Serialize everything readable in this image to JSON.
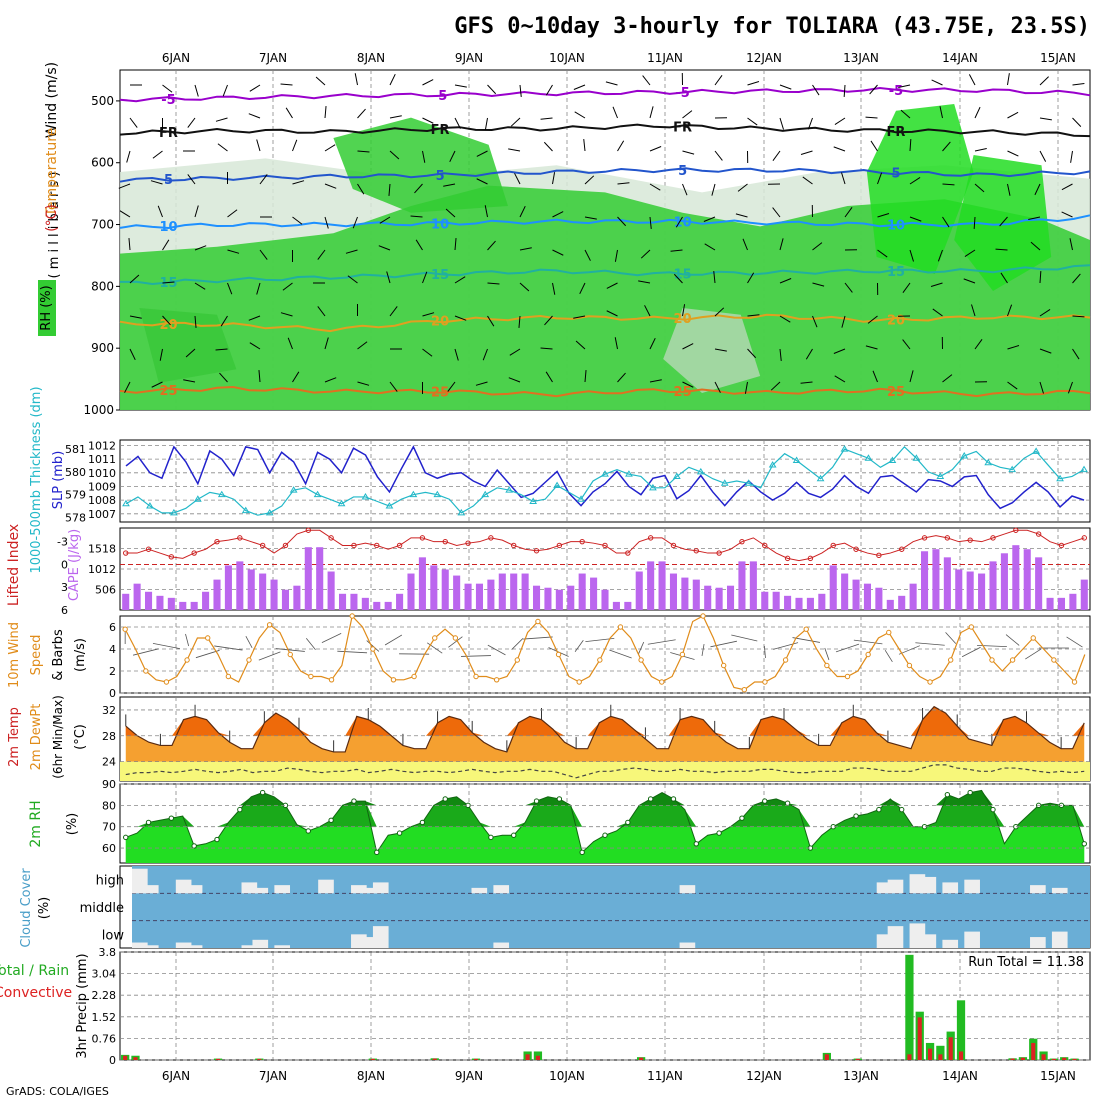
{
  "title": "GFS 0~10day 3-hourly for TOLIARA (43.75E, 23.5S)",
  "footer": "GrADS: COLA/IGES",
  "colors": {
    "grid": "#888888",
    "rh_green": "#33cc33",
    "rh_light": "#d7e8d7",
    "purple": "#9900cc",
    "blue": "#2222cc",
    "cyan": "#22b8c8",
    "red": "#cc2222",
    "orange": "#e08c1a",
    "cloud_blue": "#6aaed6",
    "precip_green": "#22bb22",
    "precip_red": "#dd2222"
  },
  "chart_data": [
    {
      "id": "upper",
      "type": "heatmap",
      "ylabel_parts": [
        "Wind (m/s)",
        "Temperature (°C)",
        "RH (%)"
      ],
      "yunit": "( m i l l i b a r s )",
      "ylim": [
        1000,
        450
      ],
      "yticks": [
        500,
        600,
        700,
        800,
        900,
        1000
      ],
      "x_labels": [
        "6JAN",
        "7JAN",
        "8JAN",
        "9JAN",
        "10JAN",
        "11JAN",
        "12JAN",
        "13JAN",
        "14JAN",
        "15JAN"
      ],
      "contours": [
        {
          "label": "-5",
          "color": "#9900cc",
          "p": [
            498,
            495,
            492,
            490,
            488,
            486,
            484,
            482,
            483,
            488
          ]
        },
        {
          "label": "FR",
          "color": "#111111",
          "p": [
            552,
            548,
            550,
            545,
            545,
            540,
            545,
            548,
            550,
            555
          ]
        },
        {
          "label": "5",
          "color": "#2255cc",
          "p": [
            628,
            625,
            622,
            620,
            615,
            612,
            612,
            615,
            620,
            615
          ]
        },
        {
          "label": "10",
          "color": "#1e90ff",
          "p": [
            705,
            700,
            700,
            698,
            695,
            695,
            697,
            700,
            700,
            688
          ]
        },
        {
          "label": "15",
          "color": "#20b0a0",
          "p": [
            795,
            790,
            785,
            780,
            775,
            780,
            778,
            775,
            775,
            768
          ]
        },
        {
          "label": "20",
          "color": "#e0a020",
          "p": [
            860,
            862,
            870,
            855,
            850,
            852,
            848,
            855,
            850,
            850
          ]
        },
        {
          "label": "25",
          "color": "#e07020",
          "p": [
            970,
            965,
            970,
            970,
            975,
            968,
            972,
            968,
            975,
            970
          ]
        }
      ]
    },
    {
      "id": "slp",
      "type": "line",
      "ylabel": "SLP (mb)",
      "ylabel2": "1000-500mb Thickness (dm)",
      "yticks": [
        1007,
        1008,
        1009,
        1010,
        1011,
        1012
      ],
      "yticks2": [
        578,
        579,
        580,
        581
      ],
      "ylim": [
        1006.4,
        1012.4
      ],
      "slp": [
        1010.5,
        1011.2,
        1010.0,
        1009.6,
        1011.9,
        1010.8,
        1009.2,
        1011.6,
        1011.0,
        1009.8,
        1011.9,
        1011.7,
        1010.0,
        1011.5,
        1010.8,
        1009.2,
        1011.5,
        1011.0,
        1010.0,
        1011.8,
        1011.3,
        1009.7,
        1008.6,
        1010.3,
        1011.9,
        1010.0,
        1009.6,
        1009.9,
        1010.0,
        1009.4,
        1009.0,
        1010.2,
        1009.2,
        1008.2,
        1008.5,
        1009.3,
        1010.1,
        1008.5,
        1007.6,
        1008.6,
        1009.2,
        1010.1,
        1009.0,
        1008.4,
        1009.6,
        1009.8,
        1008.1,
        1008.7,
        1009.8,
        1008.6,
        1007.6,
        1008.6,
        1009.4,
        1008.6,
        1008.0,
        1008.5,
        1009.3,
        1008.5,
        1008.2,
        1008.8,
        1009.8,
        1009.0,
        1008.5,
        1009.7,
        1009.8,
        1009.2,
        1008.6,
        1009.5,
        1009.4,
        1009.0,
        1009.7,
        1009.8,
        1008.4,
        1007.4,
        1007.8,
        1008.6,
        1009.3,
        1008.6,
        1007.5,
        1008.3,
        1008.0
      ],
      "thickness": [
        578.6,
        578.9,
        578.5,
        578.2,
        578.2,
        578.4,
        578.8,
        579.1,
        579.0,
        578.8,
        578.3,
        578.1,
        578.2,
        578.5,
        579.2,
        579.3,
        579.0,
        578.8,
        578.6,
        578.9,
        578.9,
        578.7,
        578.5,
        578.8,
        579.0,
        579.1,
        579.0,
        578.8,
        578.2,
        578.5,
        579.0,
        579.3,
        579.2,
        579.0,
        578.7,
        578.8,
        579.4,
        579.1,
        578.8,
        579.6,
        579.9,
        580.1,
        579.9,
        579.8,
        579.3,
        579.3,
        579.8,
        580.2,
        580.0,
        579.7,
        579.5,
        579.6,
        579.5,
        579.3,
        580.3,
        580.8,
        580.5,
        580.1,
        579.7,
        580.2,
        581.0,
        580.8,
        580.6,
        580.2,
        580.5,
        581.1,
        580.6,
        580.0,
        579.8,
        580.1,
        580.7,
        580.9,
        580.4,
        580.2,
        580.1,
        580.6,
        580.9,
        580.3,
        579.7,
        579.8,
        580.1
      ]
    },
    {
      "id": "cape",
      "type": "bar",
      "ylabel": "Lifted Index",
      "ylabel2": "CAPE (J/kg)",
      "yticks_li": [
        -3,
        0,
        3,
        6
      ],
      "yticks_cape": [
        506,
        1012,
        1518
      ],
      "cape": [
        400,
        650,
        450,
        350,
        300,
        200,
        200,
        450,
        750,
        1100,
        1200,
        1000,
        900,
        750,
        500,
        600,
        1550,
        1550,
        950,
        400,
        400,
        300,
        200,
        200,
        400,
        900,
        1300,
        1100,
        1000,
        850,
        650,
        650,
        750,
        900,
        900,
        900,
        600,
        550,
        500,
        600,
        900,
        800,
        500,
        200,
        200,
        950,
        1200,
        1200,
        900,
        800,
        750,
        600,
        550,
        600,
        1200,
        1200,
        450,
        450,
        350,
        300,
        300,
        400,
        1100,
        900,
        750,
        650,
        550,
        250,
        350,
        650,
        1450,
        1500,
        1300,
        1000,
        950,
        900,
        1200,
        1400,
        1600,
        1500,
        1300,
        300,
        300,
        400,
        750
      ],
      "li": [
        -1.5,
        -1.5,
        -2.0,
        -1.5,
        -1.0,
        -0.8,
        -1.5,
        -2.0,
        -3.0,
        -3.2,
        -3.5,
        -3.0,
        -2.5,
        -1.5,
        -2.5,
        -4.0,
        -4.5,
        -4.5,
        -3.5,
        -2.5,
        -2.5,
        -2.8,
        -2.5,
        -2.0,
        -2.5,
        -3.5,
        -3.5,
        -3.0,
        -3.0,
        -2.5,
        -2.8,
        -3.0,
        -3.5,
        -3.2,
        -2.5,
        -2.0,
        -1.8,
        -2.0,
        -2.5,
        -3.0,
        -3.0,
        -2.8,
        -2.5,
        -1.5,
        -1.5,
        -3.0,
        -3.5,
        -3.5,
        -2.5,
        -2.0,
        -1.8,
        -1.5,
        -1.5,
        -2.0,
        -3.0,
        -3.5,
        -2.5,
        -1.5,
        -0.8,
        -0.5,
        -0.8,
        -1.5,
        -2.5,
        -2.8,
        -2.0,
        -1.5,
        -1.2,
        -1.5,
        -2.0,
        -3.0,
        -3.5,
        -3.8,
        -3.5,
        -3.0,
        -3.2,
        -3.0,
        -3.5,
        -4.0,
        -4.5,
        -4.5,
        -4.0,
        -3.0,
        -2.5,
        -3.0,
        -3.5
      ]
    },
    {
      "id": "wind",
      "type": "line",
      "ylabel": "10m Wind Speed & Barbs",
      "yunit": "(m/s)",
      "yticks": [
        0,
        2,
        4,
        6
      ],
      "speed": [
        5.8,
        4.0,
        2.0,
        1.2,
        1.0,
        1.5,
        3.0,
        5.0,
        5.0,
        3.5,
        1.5,
        1.0,
        3.0,
        5.0,
        6.2,
        5.5,
        3.5,
        2.0,
        1.5,
        1.5,
        1.2,
        2.5,
        7.0,
        6.0,
        4.0,
        2.0,
        1.2,
        1.2,
        1.5,
        3.5,
        5.0,
        5.8,
        5.0,
        3.5,
        1.5,
        1.5,
        1.2,
        1.5,
        3.0,
        5.5,
        6.5,
        5.5,
        3.5,
        1.5,
        1.0,
        1.5,
        3.0,
        5.0,
        6.0,
        5.0,
        3.0,
        1.5,
        1.0,
        1.5,
        3.5,
        6.5,
        7.0,
        5.0,
        2.5,
        0.5,
        0.3,
        1.0,
        1.0,
        1.5,
        3.0,
        5.0,
        5.8,
        4.0,
        2.5,
        1.5,
        1.5,
        2.0,
        3.5,
        5.0,
        5.5,
        4.0,
        2.5,
        1.5,
        1.0,
        1.5,
        3.0,
        5.5,
        6.0,
        4.5,
        3.0,
        2.0,
        3.0,
        4.0,
        5.0,
        4.0,
        3.0,
        2.0,
        1.0,
        3.5
      ]
    },
    {
      "id": "temp",
      "type": "area",
      "ylabel": "2m Temp 2m DewPt (6hr Min/Max)",
      "yunit": "(°C)",
      "yticks": [
        24,
        28,
        32
      ],
      "temp": [
        29.5,
        28.0,
        27.0,
        26.5,
        26.5,
        30.5,
        31.0,
        30.5,
        28.5,
        27.0,
        26.0,
        26.0,
        30.0,
        31.5,
        30.5,
        29.0,
        27.0,
        26.0,
        25.5,
        25.5,
        31.0,
        30.5,
        29.5,
        28.0,
        26.5,
        26.0,
        26.0,
        30.0,
        31.0,
        30.5,
        28.5,
        27.0,
        26.0,
        25.5,
        30.0,
        31.0,
        30.5,
        29.0,
        27.0,
        26.0,
        26.0,
        30.0,
        31.0,
        30.5,
        29.0,
        27.5,
        26.0,
        26.0,
        30.5,
        31.0,
        30.5,
        28.5,
        27.0,
        26.0,
        26.0,
        30.5,
        31.0,
        30.5,
        29.0,
        27.5,
        26.5,
        26.5,
        30.0,
        31.0,
        30.5,
        28.5,
        27.0,
        26.5,
        26.0,
        30.5,
        32.5,
        31.5,
        29.5,
        27.5,
        27.0,
        26.5,
        30.5,
        31.0,
        30.0,
        28.5,
        27.0,
        26.0,
        26.0,
        30.0
      ],
      "dewpt": [
        22.0,
        22.3,
        22.3,
        22.5,
        22.3,
        22.5,
        22.8,
        22.5,
        22.3,
        22.5,
        22.8,
        22.3,
        22.5,
        22.5,
        23.0,
        22.8,
        22.5,
        22.3,
        22.5,
        22.5,
        22.8,
        22.3,
        22.5,
        22.8,
        22.5,
        22.3,
        22.5,
        22.5,
        22.3,
        22.5,
        22.8,
        22.5,
        22.3,
        22.5,
        22.5,
        22.8,
        22.5,
        22.5,
        22.0,
        21.5,
        22.0,
        22.5,
        22.5,
        22.8,
        23.0,
        22.8,
        22.5,
        22.5,
        22.8,
        22.5,
        22.5,
        22.3,
        22.5,
        22.5,
        22.5,
        22.8,
        22.8,
        22.5,
        22.3,
        22.3,
        22.5,
        22.5,
        22.5,
        23.0,
        23.0,
        22.8,
        22.5,
        22.5,
        22.5,
        23.0,
        23.5,
        23.5,
        23.0,
        22.8,
        22.5,
        22.5,
        23.0,
        23.0,
        22.8,
        22.5,
        22.3,
        22.5,
        22.3,
        22.5
      ]
    },
    {
      "id": "rh",
      "type": "area",
      "ylabel": "2m RH",
      "yunit": "(%)",
      "yticks": [
        60,
        70,
        80,
        90
      ],
      "rh": [
        65,
        67,
        72,
        73,
        74,
        75,
        61,
        62,
        64,
        72,
        78,
        84,
        86,
        84,
        80,
        71,
        68,
        70,
        73,
        80,
        82,
        82,
        58,
        66,
        67,
        70,
        72,
        80,
        83,
        84,
        80,
        72,
        65,
        66,
        66,
        72,
        82,
        84,
        83,
        80,
        58,
        63,
        66,
        68,
        72,
        80,
        83,
        86,
        83,
        78,
        62,
        66,
        67,
        70,
        74,
        80,
        82,
        83,
        81,
        78,
        60,
        66,
        70,
        73,
        75,
        76,
        78,
        83,
        78,
        70,
        70,
        72,
        85,
        83,
        86,
        87,
        78,
        62,
        70,
        75,
        80,
        81,
        80,
        80,
        62
      ]
    },
    {
      "id": "cloud",
      "type": "bar",
      "ylabel": "Cloud Cover",
      "yunit": "(%)",
      "levels": [
        "high",
        "middle",
        "low"
      ]
    },
    {
      "id": "precip",
      "type": "bar",
      "ylabel": "Total / Rain Convective",
      "yunit": "3hr Precip (mm)",
      "yticks": [
        0,
        0.76,
        1.52,
        2.28,
        3.04,
        3.8
      ],
      "run_total": "Run Total = 11.38",
      "total": [
        0.18,
        0.15,
        0,
        0,
        0,
        0,
        0,
        0,
        0,
        0.05,
        0,
        0,
        0,
        0.05,
        0,
        0,
        0,
        0,
        0,
        0,
        0,
        0,
        0,
        0,
        0.05,
        0,
        0,
        0,
        0,
        0,
        0.06,
        0,
        0,
        0,
        0.05,
        0,
        0,
        0,
        0,
        0.3,
        0.3,
        0,
        0,
        0,
        0,
        0,
        0,
        0,
        0,
        0,
        0.1,
        0,
        0,
        0,
        0,
        0,
        0,
        0,
        0,
        0,
        0,
        0,
        0,
        0,
        0,
        0,
        0,
        0,
        0.25,
        0,
        0,
        0.05,
        0,
        0,
        0,
        0,
        3.7,
        1.7,
        0.6,
        0.5,
        1.0,
        2.1,
        0,
        0,
        0,
        0,
        0.06,
        0.1,
        0.75,
        0.3,
        0.05,
        0.1,
        0.05,
        0
      ],
      "convective": [
        0.15,
        0.1,
        0,
        0,
        0,
        0,
        0,
        0,
        0,
        0.04,
        0,
        0,
        0,
        0.04,
        0,
        0,
        0,
        0,
        0,
        0,
        0,
        0,
        0,
        0,
        0.04,
        0,
        0,
        0,
        0,
        0,
        0.05,
        0,
        0,
        0,
        0.04,
        0,
        0,
        0,
        0,
        0.2,
        0.15,
        0,
        0,
        0,
        0,
        0,
        0,
        0,
        0,
        0,
        0.08,
        0,
        0,
        0,
        0,
        0,
        0,
        0,
        0,
        0,
        0,
        0,
        0,
        0,
        0,
        0,
        0,
        0,
        0.2,
        0,
        0,
        0.04,
        0,
        0,
        0,
        0,
        0.2,
        1.5,
        0.4,
        0.2,
        0.8,
        0.3,
        0,
        0,
        0,
        0,
        0.05,
        0.08,
        0.6,
        0.2,
        0.04,
        0.08,
        0.04,
        0
      ]
    }
  ]
}
